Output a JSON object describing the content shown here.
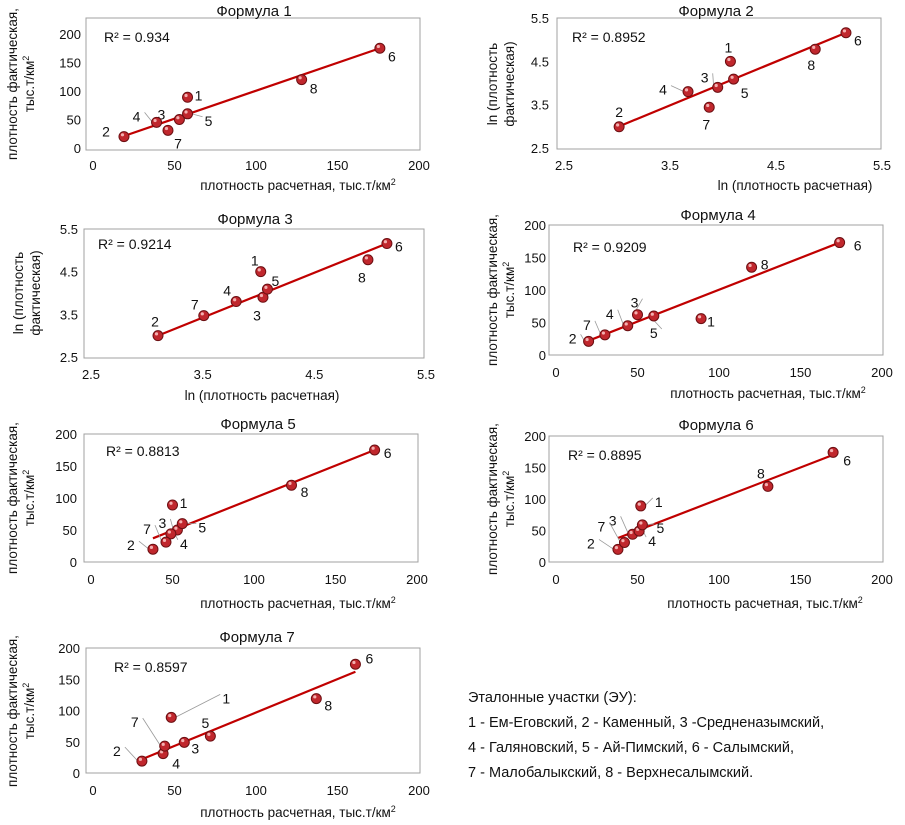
{
  "chart_data": [
    {
      "type": "scatter",
      "title": "Формула 1",
      "xlabel": "плотность расчетная, тыс.т/км²",
      "ylabel": [
        "плотность фактическая,",
        "тыс.т/км²"
      ],
      "xlim": [
        0,
        200
      ],
      "ylim": [
        0,
        200
      ],
      "xticks": [
        "0",
        "50",
        "100",
        "150",
        "200"
      ],
      "yticks": [
        "0",
        "50",
        "100",
        "150",
        "200"
      ],
      "r2_label": "R² = 0.934",
      "points": [
        {
          "label": "1",
          "x": 58,
          "y": 89
        },
        {
          "label": "2",
          "x": 19,
          "y": 20
        },
        {
          "label": "3",
          "x": 53,
          "y": 50
        },
        {
          "label": "4",
          "x": 39,
          "y": 45
        },
        {
          "label": "5",
          "x": 58,
          "y": 60
        },
        {
          "label": "6",
          "x": 176,
          "y": 175
        },
        {
          "label": "7",
          "x": 46,
          "y": 31
        },
        {
          "label": "8",
          "x": 128,
          "y": 120
        }
      ],
      "trendline": [
        [
          19,
          21
        ],
        [
          176,
          175
        ]
      ]
    },
    {
      "type": "scatter",
      "title": "Формула 2",
      "xlabel": "ln (плотность расчетная)",
      "ylabel": [
        "ln (плотность",
        "фактическая)"
      ],
      "xlim": [
        2.5,
        5.5
      ],
      "ylim": [
        2.5,
        5.5
      ],
      "xticks": [
        "2.5",
        "3.5",
        "4.5",
        "5.5"
      ],
      "yticks": [
        "2.5",
        "3.5",
        "4.5",
        "5.5"
      ],
      "r2_label": "R² = 0.8952",
      "points": [
        {
          "label": "1",
          "x": 4.07,
          "y": 4.5
        },
        {
          "label": "2",
          "x": 3.02,
          "y": 2.99
        },
        {
          "label": "3",
          "x": 3.95,
          "y": 3.9
        },
        {
          "label": "4",
          "x": 3.67,
          "y": 3.8
        },
        {
          "label": "5",
          "x": 4.1,
          "y": 4.09
        },
        {
          "label": "6",
          "x": 5.16,
          "y": 5.16
        },
        {
          "label": "7",
          "x": 3.87,
          "y": 3.44
        },
        {
          "label": "8",
          "x": 4.87,
          "y": 4.78
        }
      ],
      "trendline": [
        [
          3.02,
          3.0
        ],
        [
          5.16,
          5.16
        ]
      ]
    },
    {
      "type": "scatter",
      "title": "Формула 3",
      "xlabel": "ln (плотность расчетная)",
      "ylabel": [
        "ln (плотность",
        "фактическая)"
      ],
      "xlim": [
        2.5,
        5.5
      ],
      "ylim": [
        2.5,
        5.5
      ],
      "xticks": [
        "2.5",
        "3.5",
        "4.5",
        "5.5"
      ],
      "yticks": [
        "2.5",
        "3.5",
        "4.5",
        "5.5"
      ],
      "r2_label": "R² = 0.9214",
      "points": [
        {
          "label": "1",
          "x": 4.02,
          "y": 4.5
        },
        {
          "label": "2",
          "x": 3.1,
          "y": 3.0
        },
        {
          "label": "3",
          "x": 4.04,
          "y": 3.9
        },
        {
          "label": "4",
          "x": 3.8,
          "y": 3.8
        },
        {
          "label": "5",
          "x": 4.08,
          "y": 4.09
        },
        {
          "label": "6",
          "x": 5.15,
          "y": 5.16
        },
        {
          "label": "7",
          "x": 3.51,
          "y": 3.47
        },
        {
          "label": "8",
          "x": 4.98,
          "y": 4.78
        }
      ],
      "trendline": [
        [
          3.1,
          3.0
        ],
        [
          5.15,
          5.16
        ]
      ]
    },
    {
      "type": "scatter",
      "title": "Формула 4",
      "xlabel": "плотность расчетная, тыс.т/км²",
      "ylabel": [
        "плотность фактическая,",
        "тыс.т/км²"
      ],
      "xlim": [
        0,
        200
      ],
      "ylim": [
        0,
        200
      ],
      "xticks": [
        "0",
        "50",
        "100",
        "150",
        "200"
      ],
      "yticks": [
        "0",
        "50",
        "100",
        "150",
        "200"
      ],
      "r2_label": "R² = 0.9209",
      "points": [
        {
          "label": "1",
          "x": 89,
          "y": 56
        },
        {
          "label": "2",
          "x": 20,
          "y": 21
        },
        {
          "label": "3",
          "x": 50,
          "y": 62
        },
        {
          "label": "4",
          "x": 44,
          "y": 45
        },
        {
          "label": "5",
          "x": 60,
          "y": 60
        },
        {
          "label": "6",
          "x": 174,
          "y": 173
        },
        {
          "label": "7",
          "x": 30,
          "y": 31
        },
        {
          "label": "8",
          "x": 120,
          "y": 135
        }
      ],
      "trendline": [
        [
          20,
          22
        ],
        [
          174,
          173
        ]
      ]
    },
    {
      "type": "scatter",
      "title": "Формула 5",
      "xlabel": "плотность расчетная, тыс.т/км²",
      "ylabel": [
        "плотность фактическая,",
        "тыс.т/км²"
      ],
      "xlim": [
        0,
        200
      ],
      "ylim": [
        0,
        200
      ],
      "xticks": [
        "0",
        "50",
        "100",
        "150",
        "200"
      ],
      "yticks": [
        "0",
        "50",
        "100",
        "150",
        "200"
      ],
      "r2_label": "R² = 0.8813",
      "points": [
        {
          "label": "1",
          "x": 50,
          "y": 89
        },
        {
          "label": "2",
          "x": 38,
          "y": 20
        },
        {
          "label": "3",
          "x": 53,
          "y": 50
        },
        {
          "label": "4",
          "x": 49,
          "y": 44
        },
        {
          "label": "5",
          "x": 56,
          "y": 60
        },
        {
          "label": "6",
          "x": 174,
          "y": 175
        },
        {
          "label": "7",
          "x": 46,
          "y": 31
        },
        {
          "label": "8",
          "x": 123,
          "y": 120
        }
      ],
      "trendline": [
        [
          38,
          37
        ],
        [
          174,
          175
        ]
      ]
    },
    {
      "type": "scatter",
      "title": "Формула 6",
      "xlabel": "плотность расчетная, тыс.т/км²",
      "ylabel": [
        "плотность фактическая,",
        "тыс.т/км²"
      ],
      "xlim": [
        0,
        200
      ],
      "ylim": [
        0,
        200
      ],
      "xticks": [
        "0",
        "50",
        "100",
        "150",
        "200"
      ],
      "yticks": [
        "0",
        "50",
        "100",
        "150",
        "200"
      ],
      "r2_label": "R² = 0.8895",
      "points": [
        {
          "label": "1",
          "x": 52,
          "y": 89
        },
        {
          "label": "2",
          "x": 38,
          "y": 20
        },
        {
          "label": "3",
          "x": 47,
          "y": 44
        },
        {
          "label": "4",
          "x": 51,
          "y": 49
        },
        {
          "label": "5",
          "x": 53,
          "y": 59
        },
        {
          "label": "6",
          "x": 170,
          "y": 174
        },
        {
          "label": "7",
          "x": 42,
          "y": 31
        },
        {
          "label": "8",
          "x": 130,
          "y": 120
        }
      ],
      "trendline": [
        [
          38,
          38
        ],
        [
          170,
          170
        ]
      ]
    },
    {
      "type": "scatter",
      "title": "Формула 7",
      "xlabel": "плотность расчетная, тыс.т/км²",
      "ylabel": [
        "плотность фактическая,",
        "тыс.т/км²"
      ],
      "xlim": [
        0,
        200
      ],
      "ylim": [
        0,
        200
      ],
      "xticks": [
        "0",
        "50",
        "100",
        "150",
        "200"
      ],
      "yticks": [
        "0",
        "50",
        "100",
        "150",
        "200"
      ],
      "r2_label": "R² = 0.8597",
      "points": [
        {
          "label": "1",
          "x": 48,
          "y": 89
        },
        {
          "label": "2",
          "x": 30,
          "y": 19
        },
        {
          "label": "3",
          "x": 56,
          "y": 49
        },
        {
          "label": "4",
          "x": 43,
          "y": 31
        },
        {
          "label": "5",
          "x": 72,
          "y": 59
        },
        {
          "label": "6",
          "x": 161,
          "y": 174
        },
        {
          "label": "7",
          "x": 44,
          "y": 43
        },
        {
          "label": "8",
          "x": 137,
          "y": 119
        }
      ],
      "trendline": [
        [
          30,
          22
        ],
        [
          161,
          162
        ]
      ]
    }
  ],
  "legend": {
    "title": "Эталонные участки (ЭУ):",
    "lines": [
      "1 - Ем-Еговский, 2 - Каменный, 3 -Средненазымский,",
      "4 - Галяновский, 5 - Ай-Пимский, 6 - Салымский,",
      "7 - Малобалыкский, 8 - Верхнесалымский."
    ]
  },
  "colors": {
    "marker_fill": "#c0272d",
    "marker_edge": "#6b0f12",
    "trendline": "#c00000",
    "frame": "#a0a0a0",
    "leader": "#9a9a9a"
  }
}
